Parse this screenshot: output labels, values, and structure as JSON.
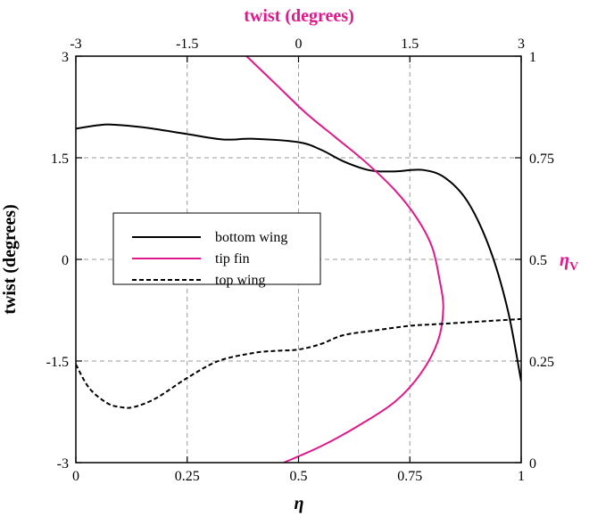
{
  "chart_data": {
    "type": "line",
    "x_bottom": {
      "label": "η",
      "ticks": [
        "0",
        "0.25",
        "0.5",
        "0.75",
        "1"
      ],
      "range": [
        0,
        1
      ]
    },
    "y_left": {
      "label": "twist (degrees)",
      "ticks": [
        "-3",
        "-1.5",
        "0",
        "1.5",
        "3"
      ],
      "range": [
        -3,
        3
      ]
    },
    "x_top": {
      "label": "twist (degrees)",
      "ticks": [
        "-3",
        "-1.5",
        "0",
        "1.5",
        "3"
      ],
      "range": [
        -3,
        3
      ]
    },
    "y_right": {
      "label_main": "η",
      "label_sub": "V",
      "ticks": [
        "0",
        "0.25",
        "0.5",
        "0.75",
        "1"
      ],
      "range": [
        0,
        1
      ]
    },
    "grid": true,
    "legend_position": "left-middle",
    "series": [
      {
        "name": "bottom wing",
        "axes": "bottom-left",
        "style": "solid",
        "color": "#000000",
        "x": [
          0,
          0.05,
          0.08,
          0.15,
          0.25,
          0.33,
          0.4,
          0.5,
          0.55,
          0.6,
          0.65,
          0.68,
          0.72,
          0.78,
          0.83,
          0.88,
          0.93,
          0.97,
          1.0
        ],
        "y": [
          1.93,
          1.98,
          1.99,
          1.95,
          1.85,
          1.77,
          1.78,
          1.73,
          1.62,
          1.45,
          1.33,
          1.3,
          1.3,
          1.32,
          1.2,
          0.85,
          0.15,
          -0.75,
          -1.8
        ]
      },
      {
        "name": "tip fin",
        "axes": "top-right",
        "style": "solid",
        "color": "#e0188c",
        "x": [
          -0.7,
          -0.3,
          0.1,
          0.5,
          0.9,
          1.3,
          1.6,
          1.8,
          1.9,
          1.95,
          1.88,
          1.65,
          1.3,
          0.8,
          0.3,
          -0.2
        ],
        "y": [
          1.0,
          0.93,
          0.86,
          0.8,
          0.74,
          0.67,
          0.6,
          0.53,
          0.45,
          0.38,
          0.3,
          0.22,
          0.15,
          0.09,
          0.04,
          0.0
        ]
      },
      {
        "name": "top wing",
        "axes": "bottom-left",
        "style": "dashed",
        "color": "#000000",
        "x": [
          0,
          0.03,
          0.07,
          0.1,
          0.13,
          0.18,
          0.25,
          0.32,
          0.4,
          0.45,
          0.5,
          0.55,
          0.6,
          0.67,
          0.75,
          0.8,
          0.9,
          1.0
        ],
        "y": [
          -1.55,
          -1.9,
          -2.12,
          -2.18,
          -2.18,
          -2.05,
          -1.75,
          -1.5,
          -1.38,
          -1.35,
          -1.33,
          -1.25,
          -1.12,
          -1.05,
          -0.98,
          -0.96,
          -0.92,
          -0.88
        ]
      }
    ]
  },
  "colors": {
    "magenta": "#e0188c",
    "grid": "#9a9a9a",
    "axis": "#000000"
  }
}
